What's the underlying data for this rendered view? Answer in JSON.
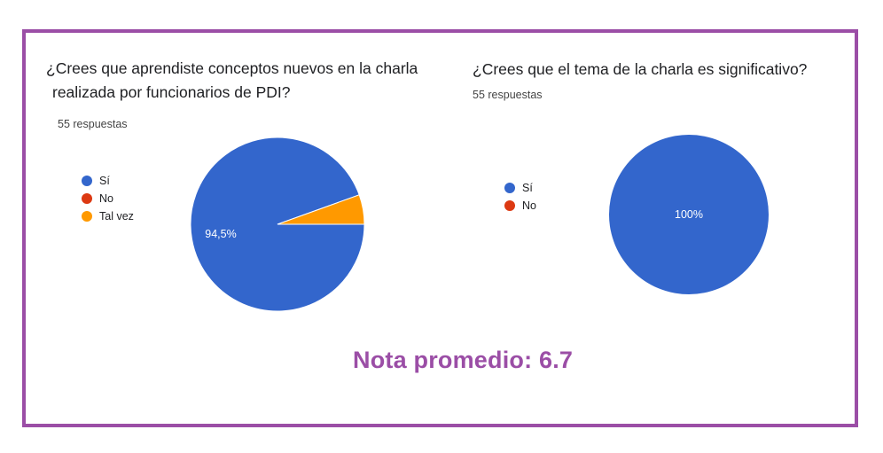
{
  "colors": {
    "frame": "#9b4ea6",
    "si": "#3366cc",
    "no": "#dc3912",
    "tal_vez": "#ff9900",
    "nota": "#9b4ea6"
  },
  "chart_data": [
    {
      "type": "pie",
      "title_line1": "¿Crees que aprendiste conceptos nuevos en la charla",
      "title_line2": "realizada por funcionarios de PDI?",
      "subtitle": "55 respuestas",
      "categories": [
        "Sí",
        "No",
        "Tal vez"
      ],
      "values": [
        94.5,
        0,
        5.5
      ],
      "data_labels": [
        "94,5%",
        "",
        ""
      ],
      "colors": [
        "#3366cc",
        "#dc3912",
        "#ff9900"
      ],
      "legend_position": "left"
    },
    {
      "type": "pie",
      "title": "¿Crees que el tema de la charla es significativo?",
      "subtitle": "55 respuestas",
      "categories": [
        "Sí",
        "No"
      ],
      "values": [
        100,
        0
      ],
      "data_labels": [
        "100%",
        ""
      ],
      "colors": [
        "#3366cc",
        "#dc3912"
      ],
      "legend_position": "left"
    }
  ],
  "footer": {
    "nota": "Nota promedio: 6.7"
  }
}
